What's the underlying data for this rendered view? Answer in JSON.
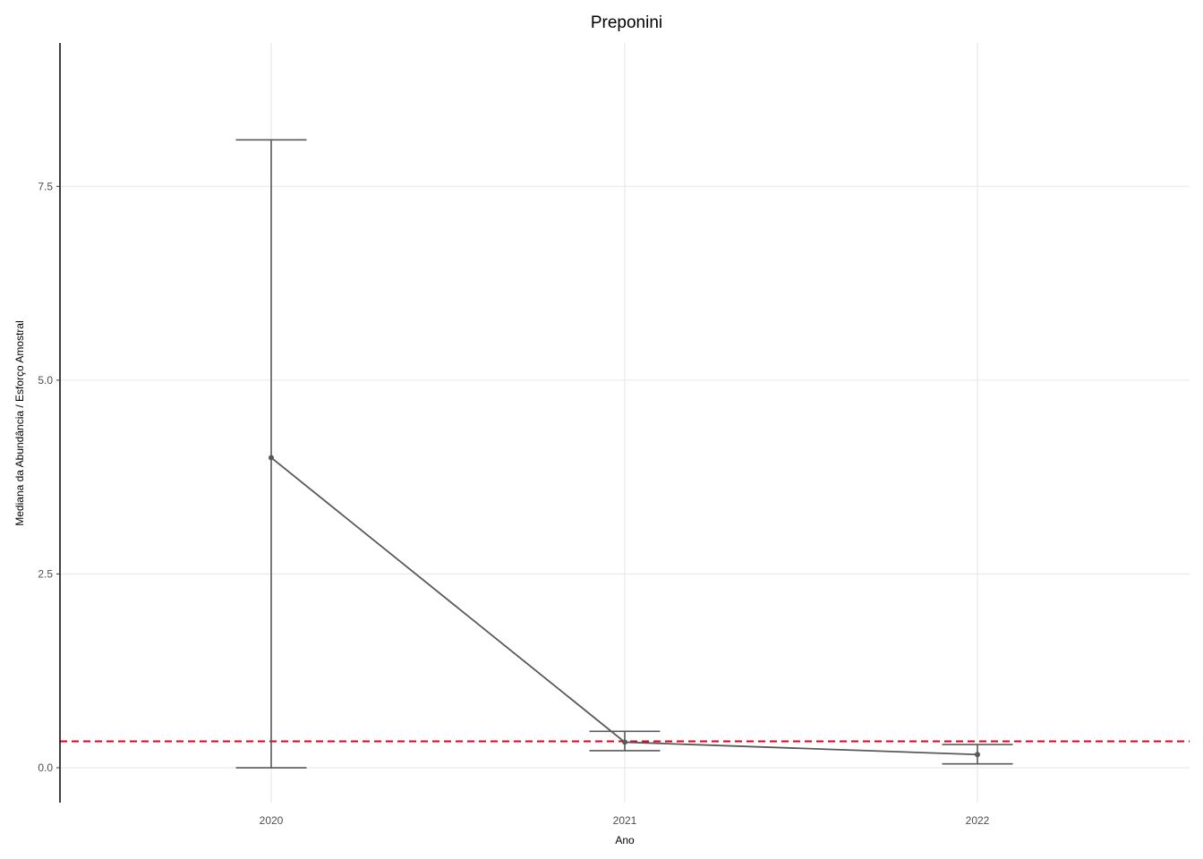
{
  "chart_data": {
    "type": "line",
    "title": "Preponini",
    "xlabel": "Ano",
    "ylabel": "Mediana da Abundância / Esforço Amostral",
    "categories": [
      "2020",
      "2021",
      "2022"
    ],
    "series": [
      {
        "values": [
          4.0,
          0.33,
          0.17
        ],
        "lower": [
          0.0,
          0.22,
          0.05
        ],
        "upper": [
          8.1,
          0.47,
          0.3
        ],
        "color": "#595959"
      }
    ],
    "reference_line": {
      "value": 0.34,
      "color": "#e0001b",
      "style": "dashed"
    },
    "yticks": [
      0.0,
      2.5,
      5.0,
      7.5
    ],
    "ytick_labels": [
      "0.0",
      "2.5",
      "5.0",
      "7.5"
    ],
    "ylim": [
      -0.45,
      9.35
    ],
    "grid": true
  }
}
